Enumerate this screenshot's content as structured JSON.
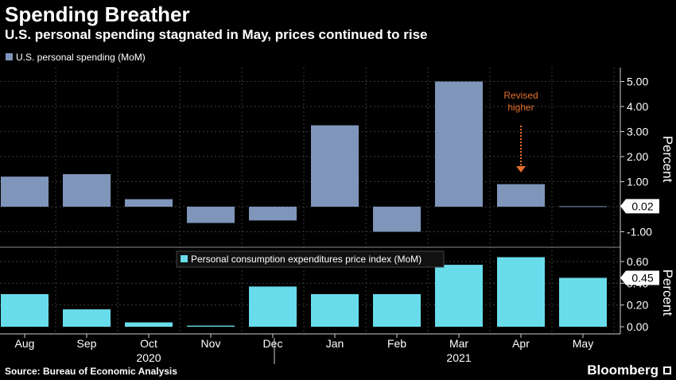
{
  "title": "Spending Breather",
  "subtitle": "U.S. personal spending stagnated in May, prices continued to rise",
  "source": "Source: Bureau of Economic Analysis",
  "brand": "Bloomberg",
  "colors": {
    "background": "#000000",
    "spending": "#7F96BA",
    "pce": "#69DCEB",
    "annotation": "#E56F2D",
    "grid": "#3a3a3a",
    "text": "#ffffff"
  },
  "chart_data": [
    {
      "type": "bar",
      "legend": "U.S. personal spending (MoM)",
      "categories": [
        "Aug",
        "Sep",
        "Oct",
        "Nov",
        "Dec",
        "Jan",
        "Feb",
        "Mar",
        "Apr",
        "May"
      ],
      "values": [
        1.2,
        1.3,
        0.3,
        -0.65,
        -0.55,
        3.25,
        -1.0,
        5.0,
        0.9,
        0.02
      ],
      "ylabel": "Percent",
      "yticks": [
        "5.00",
        "4.00",
        "3.00",
        "2.00",
        "1.00",
        "-1.00"
      ],
      "ylim": [
        -1.4,
        5.5
      ],
      "last_value_label": "0.02",
      "annotation": {
        "text": [
          "Revised",
          "higher"
        ],
        "category": "Apr"
      }
    },
    {
      "type": "bar",
      "legend": "Personal consumption expenditures price index (MoM)",
      "categories": [
        "Aug",
        "Sep",
        "Oct",
        "Nov",
        "Dec",
        "Jan",
        "Feb",
        "Mar",
        "Apr",
        "May"
      ],
      "values": [
        0.3,
        0.16,
        0.04,
        0.01,
        0.37,
        0.3,
        0.3,
        0.57,
        0.64,
        0.45
      ],
      "ylabel": "Percent",
      "yticks": [
        "0.60",
        "0.40",
        "0.20",
        "0.00"
      ],
      "ylim": [
        0,
        0.7
      ],
      "last_value_label": "0.45"
    }
  ],
  "x_axis": {
    "labels": [
      "Aug",
      "Sep",
      "Oct",
      "Nov",
      "Dec",
      "Jan",
      "Feb",
      "Mar",
      "Apr",
      "May"
    ],
    "years": [
      {
        "label": "2020",
        "category": "Oct"
      },
      {
        "label": "2021",
        "category": "Mar"
      }
    ]
  }
}
